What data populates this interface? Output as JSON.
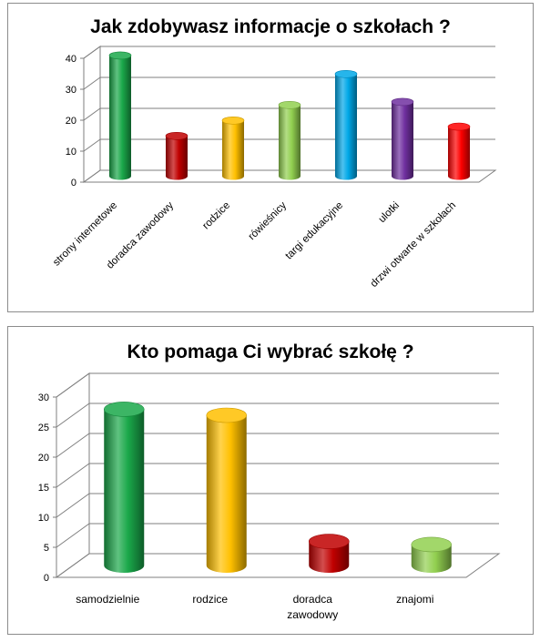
{
  "chart_data": [
    {
      "type": "bar",
      "style": "3d-cylinder",
      "title": "Jak zdobywasz informacje o szkołach ?",
      "categories": [
        "strony internetowe",
        "doradca zawodowy",
        "rodzice",
        "rówieśnicy",
        "targi edukacyjne",
        "ulotki",
        "drzwi otwarte w szkołach"
      ],
      "values": [
        39,
        13,
        18,
        23,
        33,
        24,
        16
      ],
      "colors": [
        "#1aa84a",
        "#c00000",
        "#ffc000",
        "#92d050",
        "#00a8e8",
        "#7030a0",
        "#ff0000"
      ],
      "ylim": [
        0,
        40
      ],
      "yticks": [
        0,
        10,
        20,
        30,
        40
      ],
      "grid": true,
      "xlabel_rotation": -45
    },
    {
      "type": "bar",
      "style": "3d-cylinder",
      "title": "Kto pomaga Ci wybrać szkołę ?",
      "categories": [
        "samodzielnie",
        "rodzice",
        "doradca zawodowy",
        "znajomi"
      ],
      "category_lines": [
        [
          "samodzielnie"
        ],
        [
          "rodzice"
        ],
        [
          "doradca",
          "zawodowy"
        ],
        [
          "znajomi"
        ]
      ],
      "values": [
        26,
        25,
        4,
        3.5
      ],
      "colors": [
        "#1aa84a",
        "#ffc000",
        "#c00000",
        "#92d050"
      ],
      "ylim": [
        0,
        30
      ],
      "yticks": [
        0,
        5,
        10,
        15,
        20,
        25,
        30
      ],
      "grid": true,
      "xlabel_rotation": 0
    }
  ]
}
